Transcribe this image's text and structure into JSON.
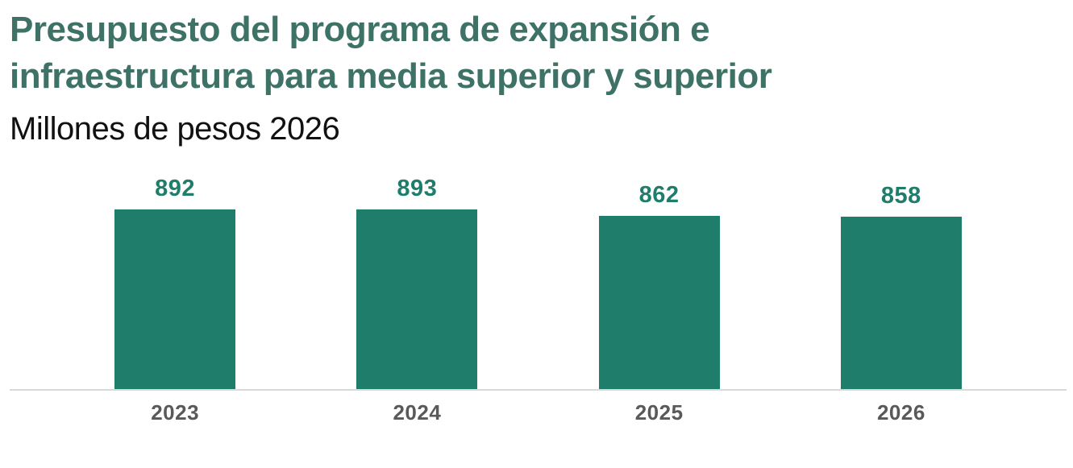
{
  "header": {
    "title": "Presupuesto del programa de expansión e infraestructura para media superior y superior",
    "subtitle": "Millones de pesos 2026"
  },
  "chart_data": {
    "type": "bar",
    "categories": [
      "2023",
      "2024",
      "2025",
      "2026"
    ],
    "values": [
      892,
      893,
      862,
      858
    ],
    "title": "Presupuesto del programa de expansión e infraestructura para media superior y superior",
    "subtitle": "Millones de pesos 2026",
    "xlabel": "",
    "ylabel": "",
    "ylim": [
      0,
      950
    ],
    "grid": false,
    "legend": "none",
    "value_labels": true,
    "orientation": "vertical"
  },
  "style": {
    "bar_color": "#1F7D6C",
    "value_label_color": "#1F7D6C",
    "title_color": "#3E7266",
    "subtitle_color": "#111111",
    "axis_label_color": "#595959",
    "axis_line_color": "#D9D9D9",
    "background_color": "#FFFFFF"
  }
}
